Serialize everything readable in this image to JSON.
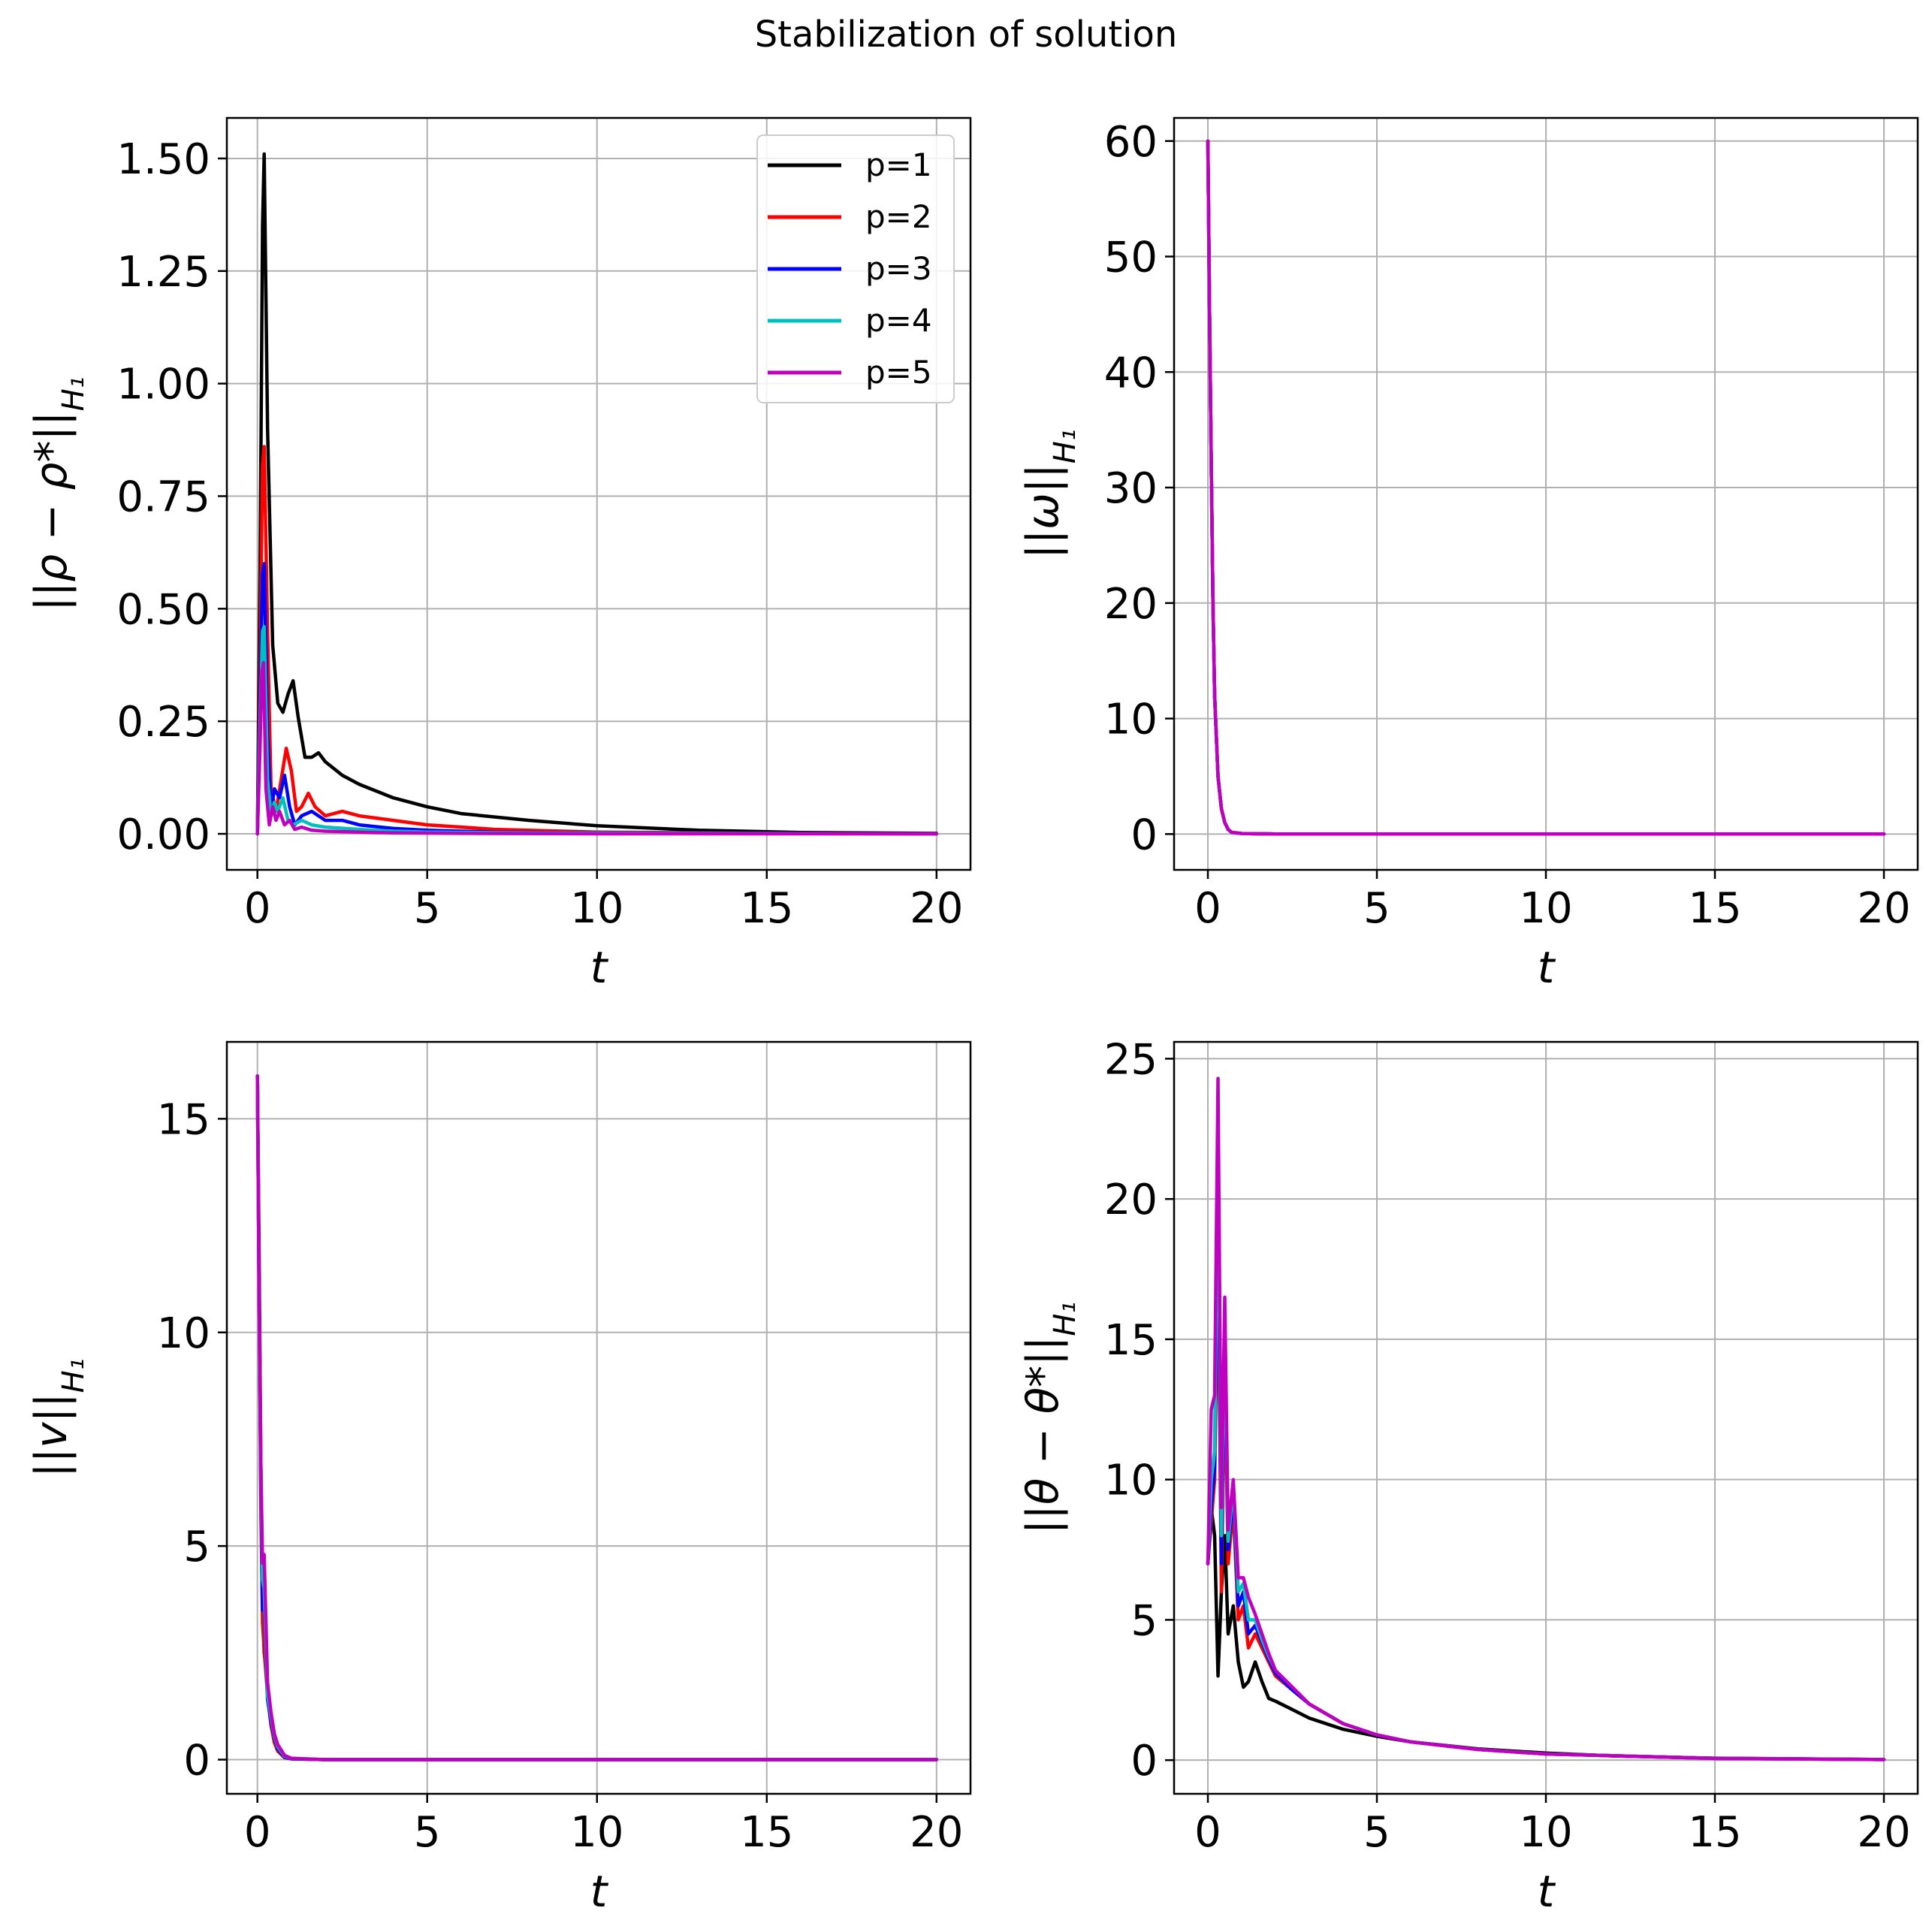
{
  "figure": {
    "suptitle": "Stabilization of solution"
  },
  "legend": {
    "placement": "top-right of first subplot",
    "entries": [
      {
        "label": "p=1",
        "color": "#000000"
      },
      {
        "label": "p=2",
        "color": "#ff0000"
      },
      {
        "label": "p=3",
        "color": "#0000ff"
      },
      {
        "label": "p=4",
        "color": "#00bfbf"
      },
      {
        "label": "p=5",
        "color": "#bf00bf"
      }
    ]
  },
  "chart_data": [
    {
      "type": "line",
      "xlabel": "t",
      "ylabel": "||ρ − ρ*||_{H₁}",
      "xlim": [
        -0.9,
        21.0
      ],
      "ylim": [
        -0.08,
        1.59
      ],
      "xticks": [
        0,
        5,
        10,
        15,
        20
      ],
      "xticklabels": [
        "0",
        "5",
        "10",
        "15",
        "20"
      ],
      "yticks": [
        0,
        0.25,
        0.5,
        0.75,
        1.0,
        1.25,
        1.5
      ],
      "yticklabels": [
        "0.00",
        "0.25",
        "0.50",
        "0.75",
        "1.00",
        "1.25",
        "1.50"
      ],
      "grid": true,
      "series": [
        {
          "name": "p=1",
          "color": "#000000",
          "x": [
            0,
            0.08,
            0.15,
            0.2,
            0.3,
            0.45,
            0.6,
            0.75,
            0.9,
            1.05,
            1.2,
            1.4,
            1.6,
            1.8,
            2,
            2.5,
            3,
            4,
            5,
            6,
            8,
            10,
            13,
            16,
            20
          ],
          "y": [
            0,
            0.6,
            1.35,
            1.51,
            0.9,
            0.42,
            0.29,
            0.27,
            0.31,
            0.34,
            0.26,
            0.17,
            0.17,
            0.18,
            0.16,
            0.13,
            0.11,
            0.08,
            0.06,
            0.045,
            0.03,
            0.018,
            0.008,
            0.003,
            0.001
          ]
        },
        {
          "name": "p=2",
          "color": "#ff0000",
          "x": [
            0,
            0.08,
            0.15,
            0.2,
            0.3,
            0.4,
            0.55,
            0.7,
            0.85,
            1,
            1.15,
            1.3,
            1.5,
            1.7,
            2,
            2.5,
            3,
            4,
            5,
            7,
            10,
            15,
            20
          ],
          "y": [
            0,
            0.4,
            0.82,
            0.86,
            0.45,
            0.1,
            0.05,
            0.12,
            0.19,
            0.14,
            0.05,
            0.06,
            0.09,
            0.06,
            0.04,
            0.05,
            0.04,
            0.03,
            0.02,
            0.01,
            0.004,
            0.001,
            0
          ]
        },
        {
          "name": "p=3",
          "color": "#0000ff",
          "x": [
            0,
            0.08,
            0.15,
            0.2,
            0.3,
            0.4,
            0.5,
            0.65,
            0.8,
            0.95,
            1.1,
            1.3,
            1.6,
            2,
            2.5,
            3,
            4,
            5,
            7,
            10,
            20
          ],
          "y": [
            0,
            0.3,
            0.58,
            0.6,
            0.22,
            0.05,
            0.1,
            0.08,
            0.13,
            0.06,
            0.02,
            0.04,
            0.05,
            0.03,
            0.03,
            0.02,
            0.012,
            0.008,
            0.004,
            0.002,
            0
          ]
        },
        {
          "name": "p=4",
          "color": "#00bfbf",
          "x": [
            0,
            0.08,
            0.15,
            0.2,
            0.3,
            0.4,
            0.5,
            0.6,
            0.75,
            0.9,
            1.05,
            1.3,
            1.6,
            2,
            3,
            4,
            5,
            8,
            12,
            20
          ],
          "y": [
            0,
            0.25,
            0.45,
            0.46,
            0.12,
            0.04,
            0.07,
            0.05,
            0.08,
            0.03,
            0.02,
            0.03,
            0.02,
            0.015,
            0.01,
            0.006,
            0.004,
            0.002,
            0.001,
            0
          ]
        },
        {
          "name": "p=5",
          "color": "#bf00bf",
          "x": [
            0,
            0.08,
            0.13,
            0.18,
            0.25,
            0.35,
            0.45,
            0.55,
            0.65,
            0.8,
            0.95,
            1.1,
            1.3,
            1.6,
            2,
            3,
            4,
            6,
            10,
            20
          ],
          "y": [
            0,
            0.2,
            0.36,
            0.38,
            0.1,
            0.02,
            0.06,
            0.03,
            0.05,
            0.02,
            0.03,
            0.01,
            0.015,
            0.008,
            0.006,
            0.004,
            0.002,
            0.001,
            0,
            0
          ]
        }
      ]
    },
    {
      "type": "line",
      "xlabel": "t",
      "ylabel": "||ω||_{H₁}",
      "xlim": [
        -1.0,
        21.0
      ],
      "ylim": [
        -3.1,
        62.0
      ],
      "xticks": [
        0,
        5,
        10,
        15,
        20
      ],
      "xticklabels": [
        "0",
        "5",
        "10",
        "15",
        "20"
      ],
      "yticks": [
        0,
        10,
        20,
        30,
        40,
        50,
        60
      ],
      "yticklabels": [
        "0",
        "10",
        "20",
        "30",
        "40",
        "50",
        "60"
      ],
      "grid": true,
      "series": [
        {
          "name": "p=1",
          "color": "#000000",
          "x": [
            0,
            0.05,
            0.1,
            0.15,
            0.2,
            0.3,
            0.4,
            0.5,
            0.6,
            0.7,
            1,
            2,
            5,
            10,
            20
          ],
          "y": [
            60,
            45,
            32,
            20,
            12,
            5,
            2.2,
            1,
            0.4,
            0.15,
            0.05,
            0,
            0,
            0,
            0
          ]
        },
        {
          "name": "p=2",
          "color": "#ff0000",
          "x": [
            0,
            0.05,
            0.1,
            0.15,
            0.2,
            0.3,
            0.4,
            0.5,
            0.6,
            0.7,
            1,
            2,
            5,
            10,
            20
          ],
          "y": [
            60,
            45,
            32,
            20,
            12,
            5,
            2.2,
            1,
            0.4,
            0.15,
            0.05,
            0,
            0,
            0,
            0
          ]
        },
        {
          "name": "p=3",
          "color": "#0000ff",
          "x": [
            0,
            0.05,
            0.1,
            0.15,
            0.2,
            0.3,
            0.4,
            0.5,
            0.6,
            0.7,
            1,
            2,
            5,
            10,
            20
          ],
          "y": [
            60,
            45,
            32,
            20,
            12,
            5,
            2.2,
            1,
            0.4,
            0.15,
            0.05,
            0,
            0,
            0,
            0
          ]
        },
        {
          "name": "p=4",
          "color": "#00bfbf",
          "x": [
            0,
            0.05,
            0.1,
            0.15,
            0.2,
            0.3,
            0.4,
            0.5,
            0.6,
            0.7,
            1,
            2,
            5,
            10,
            20
          ],
          "y": [
            60,
            45,
            32,
            20,
            12,
            5,
            2.2,
            1,
            0.4,
            0.15,
            0.05,
            0,
            0,
            0,
            0
          ]
        },
        {
          "name": "p=5",
          "color": "#bf00bf",
          "x": [
            0,
            0.05,
            0.1,
            0.15,
            0.2,
            0.3,
            0.4,
            0.5,
            0.6,
            0.7,
            1,
            2,
            5,
            10,
            20
          ],
          "y": [
            60,
            45,
            32,
            20,
            12,
            5,
            2.2,
            1,
            0.4,
            0.15,
            0.05,
            0,
            0,
            0,
            0
          ]
        }
      ]
    },
    {
      "type": "line",
      "xlabel": "t",
      "ylabel": "||v||_{H₁}",
      "xlim": [
        -0.9,
        21.0
      ],
      "ylim": [
        -0.8,
        16.8
      ],
      "xticks": [
        0,
        5,
        10,
        15,
        20
      ],
      "xticklabels": [
        "0",
        "5",
        "10",
        "15",
        "20"
      ],
      "yticks": [
        0,
        5,
        10,
        15
      ],
      "yticklabels": [
        "0",
        "5",
        "10",
        "15"
      ],
      "grid": true,
      "series": [
        {
          "name": "p=1",
          "color": "#000000",
          "x": [
            0,
            0.05,
            0.1,
            0.15,
            0.2,
            0.3,
            0.4,
            0.5,
            0.6,
            0.8,
            1,
            2,
            5,
            10,
            20
          ],
          "y": [
            16,
            12,
            7,
            4,
            2.5,
            1.8,
            0.9,
            0.4,
            0.2,
            0.05,
            0.02,
            0,
            0,
            0,
            0
          ]
        },
        {
          "name": "p=2",
          "color": "#ff0000",
          "x": [
            0,
            0.05,
            0.1,
            0.15,
            0.2,
            0.3,
            0.4,
            0.5,
            0.6,
            0.8,
            1,
            2,
            5,
            10,
            20
          ],
          "y": [
            16,
            11,
            6,
            3.2,
            2.6,
            1.5,
            0.8,
            0.4,
            0.2,
            0.05,
            0.02,
            0,
            0,
            0,
            0
          ]
        },
        {
          "name": "p=3",
          "color": "#0000ff",
          "x": [
            0,
            0.05,
            0.1,
            0.15,
            0.2,
            0.3,
            0.4,
            0.5,
            0.6,
            0.8,
            1,
            2,
            5,
            10,
            20
          ],
          "y": [
            16,
            11,
            6.5,
            3.5,
            3.6,
            1.4,
            0.9,
            0.5,
            0.25,
            0.06,
            0.02,
            0,
            0,
            0,
            0
          ]
        },
        {
          "name": "p=4",
          "color": "#00bfbf",
          "x": [
            0,
            0.05,
            0.1,
            0.15,
            0.2,
            0.3,
            0.4,
            0.5,
            0.6,
            0.8,
            1,
            2,
            5,
            10,
            20
          ],
          "y": [
            16,
            11,
            6.8,
            4.2,
            4,
            1.5,
            1,
            0.55,
            0.3,
            0.08,
            0.03,
            0,
            0,
            0,
            0
          ]
        },
        {
          "name": "p=5",
          "color": "#bf00bf",
          "x": [
            0,
            0.05,
            0.1,
            0.15,
            0.2,
            0.3,
            0.4,
            0.5,
            0.6,
            0.8,
            1,
            2,
            5,
            10,
            20
          ],
          "y": [
            16,
            11,
            7,
            4.6,
            4.8,
            1.8,
            1.1,
            0.6,
            0.35,
            0.1,
            0.03,
            0,
            0,
            0,
            0
          ]
        }
      ]
    },
    {
      "type": "line",
      "xlabel": "t",
      "ylabel": "||θ − θ*||_{H₁}",
      "xlim": [
        -1.0,
        21.0
      ],
      "ylim": [
        -1.2,
        25.6
      ],
      "xticks": [
        0,
        5,
        10,
        15,
        20
      ],
      "xticklabels": [
        "0",
        "5",
        "10",
        "15",
        "20"
      ],
      "yticks": [
        0,
        5,
        10,
        15,
        20,
        25
      ],
      "yticklabels": [
        "0",
        "5",
        "10",
        "15",
        "20",
        "25"
      ],
      "grid": true,
      "series": [
        {
          "name": "p=1",
          "color": "#000000",
          "x": [
            0,
            0.1,
            0.2,
            0.3,
            0.4,
            0.5,
            0.6,
            0.75,
            0.9,
            1.05,
            1.2,
            1.4,
            1.6,
            1.8,
            2,
            2.5,
            3,
            4,
            5,
            6,
            8,
            10,
            12,
            15,
            20
          ],
          "y": [
            7,
            9,
            8,
            3,
            6,
            8,
            4.5,
            5.5,
            3.5,
            2.6,
            2.8,
            3.5,
            2.8,
            2.2,
            2.1,
            1.8,
            1.5,
            1.1,
            0.85,
            0.65,
            0.4,
            0.25,
            0.15,
            0.07,
            0.02
          ]
        },
        {
          "name": "p=2",
          "color": "#ff0000",
          "x": [
            0,
            0.1,
            0.2,
            0.3,
            0.4,
            0.5,
            0.6,
            0.75,
            0.9,
            1.05,
            1.2,
            1.4,
            1.6,
            1.8,
            2,
            2.5,
            3,
            4,
            5,
            6,
            8,
            10,
            15,
            20
          ],
          "y": [
            7,
            8.5,
            10,
            18,
            6,
            14,
            7,
            9,
            5,
            5.5,
            4,
            4.5,
            4,
            3.5,
            3,
            2.5,
            2,
            1.3,
            0.9,
            0.65,
            0.38,
            0.22,
            0.06,
            0.02
          ]
        },
        {
          "name": "p=3",
          "color": "#0000ff",
          "x": [
            0,
            0.1,
            0.2,
            0.3,
            0.4,
            0.5,
            0.6,
            0.75,
            0.9,
            1.05,
            1.2,
            1.4,
            1.6,
            1.8,
            2,
            2.5,
            3,
            4,
            5,
            6,
            8,
            10,
            15,
            20
          ],
          "y": [
            7,
            9,
            10.5,
            20,
            7,
            15,
            7.5,
            9.5,
            5.5,
            6,
            4.5,
            4.8,
            4.2,
            3.6,
            3.1,
            2.5,
            2,
            1.3,
            0.9,
            0.65,
            0.38,
            0.22,
            0.06,
            0.02
          ]
        },
        {
          "name": "p=4",
          "color": "#00bfbf",
          "x": [
            0,
            0.1,
            0.2,
            0.3,
            0.4,
            0.5,
            0.6,
            0.75,
            0.9,
            1.05,
            1.2,
            1.4,
            1.6,
            1.8,
            2,
            2.5,
            3,
            4,
            5,
            6,
            8,
            10,
            15,
            20
          ],
          "y": [
            7,
            10,
            11,
            22,
            8,
            15.5,
            7.8,
            9.8,
            6,
            6.3,
            5,
            5,
            4.3,
            3.7,
            3.2,
            2.6,
            2,
            1.3,
            0.9,
            0.65,
            0.38,
            0.22,
            0.06,
            0.02
          ]
        },
        {
          "name": "p=5",
          "color": "#bf00bf",
          "x": [
            0,
            0.1,
            0.2,
            0.3,
            0.4,
            0.5,
            0.6,
            0.75,
            0.9,
            1.05,
            1.2,
            1.4,
            1.6,
            1.8,
            2,
            2.5,
            3,
            4,
            5,
            6,
            8,
            10,
            15,
            20
          ],
          "y": [
            7,
            12.5,
            13,
            24.3,
            9,
            16.5,
            8.2,
            10,
            6.5,
            6.5,
            5.8,
            5.2,
            4.5,
            3.8,
            3.2,
            2.6,
            2,
            1.3,
            0.9,
            0.65,
            0.38,
            0.22,
            0.06,
            0.02
          ]
        }
      ]
    }
  ]
}
